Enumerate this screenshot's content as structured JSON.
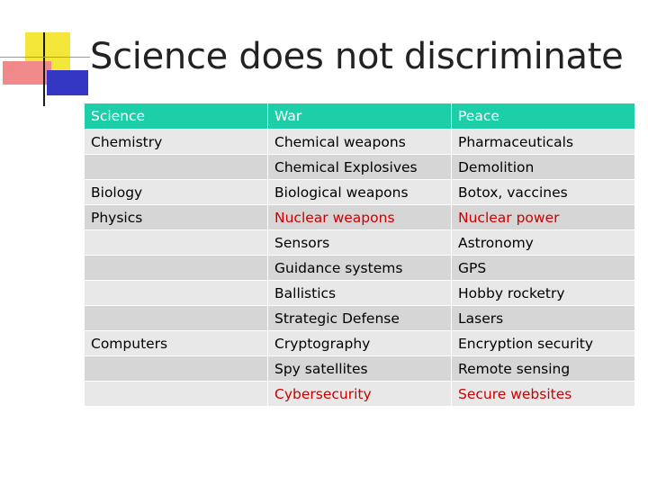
{
  "slide": {
    "title": "Science does not discriminate"
  },
  "table": {
    "headers": [
      "Science",
      "War",
      "Peace"
    ],
    "rows": [
      [
        "Chemistry",
        "Chemical weapons",
        "Pharmaceuticals"
      ],
      [
        "",
        "Chemical Explosives",
        "Demolition"
      ],
      [
        "Biology",
        "Biological weapons",
        "Botox, vaccines"
      ],
      [
        "Physics",
        "Nuclear weapons",
        "Nuclear power"
      ],
      [
        "",
        "Sensors",
        "Astronomy"
      ],
      [
        "",
        "Guidance systems",
        "GPS"
      ],
      [
        "",
        "Ballistics",
        "Hobby rocketry"
      ],
      [
        "",
        "Strategic Defense",
        "Lasers"
      ],
      [
        "Computers",
        "Cryptography",
        "Encryption security"
      ],
      [
        "",
        "Spy satellites",
        "Remote sensing"
      ],
      [
        "",
        "Cybersecurity",
        "Secure websites"
      ]
    ]
  },
  "colors": {
    "header_bg": "#1ccfa8",
    "row_light": "#e8e8e8",
    "row_dark": "#d6d6d6",
    "highlight_text": "#cc0000"
  }
}
